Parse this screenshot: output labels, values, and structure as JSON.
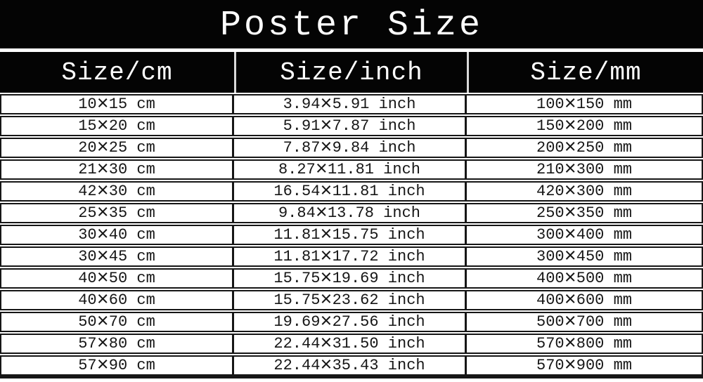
{
  "title": "Poster Size",
  "colors": {
    "bar_background": "#040404",
    "bar_text": "#ffffff",
    "row_background": "#ffffff",
    "row_text": "#161616",
    "border": "#161616",
    "header_divider": "#d9d9d9"
  },
  "table": {
    "headers": [
      {
        "id": "cm",
        "label": "Size/cm"
      },
      {
        "id": "inch",
        "label": "Size/inch"
      },
      {
        "id": "mm",
        "label": "Size/mm"
      }
    ],
    "rows": [
      {
        "cm": "10×15 cm",
        "inch": "3.94×5.91 inch",
        "mm": "100×150 mm"
      },
      {
        "cm": "15×20 cm",
        "inch": "5.91×7.87 inch",
        "mm": "150×200 mm"
      },
      {
        "cm": "20×25 cm",
        "inch": "7.87×9.84 inch",
        "mm": "200×250 mm"
      },
      {
        "cm": "21×30 cm",
        "inch": "8.27×11.81 inch",
        "mm": "210×300 mm"
      },
      {
        "cm": "42×30 cm",
        "inch": "16.54×11.81 inch",
        "mm": "420×300 mm"
      },
      {
        "cm": "25×35 cm",
        "inch": "9.84×13.78 inch",
        "mm": "250×350 mm"
      },
      {
        "cm": "30×40 cm",
        "inch": "11.81×15.75 inch",
        "mm": "300×400 mm"
      },
      {
        "cm": "30×45 cm",
        "inch": "11.81×17.72 inch",
        "mm": "300×450 mm"
      },
      {
        "cm": "40×50 cm",
        "inch": "15.75×19.69 inch",
        "mm": "400×500 mm"
      },
      {
        "cm": "40×60 cm",
        "inch": "15.75×23.62 inch",
        "mm": "400×600 mm"
      },
      {
        "cm": "50×70 cm",
        "inch": "19.69×27.56 inch",
        "mm": "500×700 mm"
      },
      {
        "cm": "57×80 cm",
        "inch": "22.44×31.50 inch",
        "mm": "570×800 mm"
      },
      {
        "cm": "57×90 cm",
        "inch": "22.44×35.43 inch",
        "mm": "570×900 mm"
      }
    ]
  }
}
